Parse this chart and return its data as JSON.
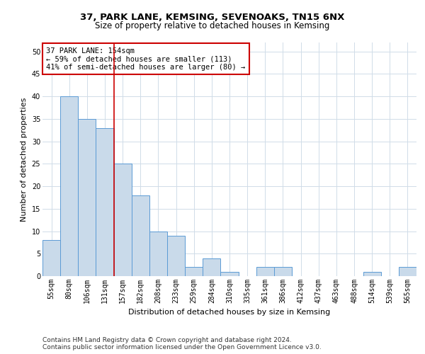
{
  "title": "37, PARK LANE, KEMSING, SEVENOAKS, TN15 6NX",
  "subtitle": "Size of property relative to detached houses in Kemsing",
  "xlabel": "Distribution of detached houses by size in Kemsing",
  "ylabel": "Number of detached properties",
  "categories": [
    "55sqm",
    "80sqm",
    "106sqm",
    "131sqm",
    "157sqm",
    "182sqm",
    "208sqm",
    "233sqm",
    "259sqm",
    "284sqm",
    "310sqm",
    "335sqm",
    "361sqm",
    "386sqm",
    "412sqm",
    "437sqm",
    "463sqm",
    "488sqm",
    "514sqm",
    "539sqm",
    "565sqm"
  ],
  "values": [
    8,
    40,
    35,
    33,
    25,
    18,
    10,
    9,
    2,
    4,
    1,
    0,
    2,
    2,
    0,
    0,
    0,
    0,
    1,
    0,
    2
  ],
  "bar_color": "#c9daea",
  "bar_edge_color": "#5b9bd5",
  "annotation_line1": "37 PARK LANE: 154sqm",
  "annotation_line2": "← 59% of detached houses are smaller (113)",
  "annotation_line3": "41% of semi-detached houses are larger (80) →",
  "annotation_box_color": "#ffffff",
  "annotation_box_edge_color": "#cc0000",
  "vline_color": "#cc0000",
  "vline_x_index": 4,
  "ylim": [
    0,
    52
  ],
  "yticks": [
    0,
    5,
    10,
    15,
    20,
    25,
    30,
    35,
    40,
    45,
    50
  ],
  "footer1": "Contains HM Land Registry data © Crown copyright and database right 2024.",
  "footer2": "Contains public sector information licensed under the Open Government Licence v3.0.",
  "background_color": "#ffffff",
  "grid_color": "#d0dce8",
  "title_fontsize": 9.5,
  "subtitle_fontsize": 8.5,
  "axis_label_fontsize": 8,
  "tick_fontsize": 7,
  "annotation_fontsize": 7.5,
  "footer_fontsize": 6.5
}
